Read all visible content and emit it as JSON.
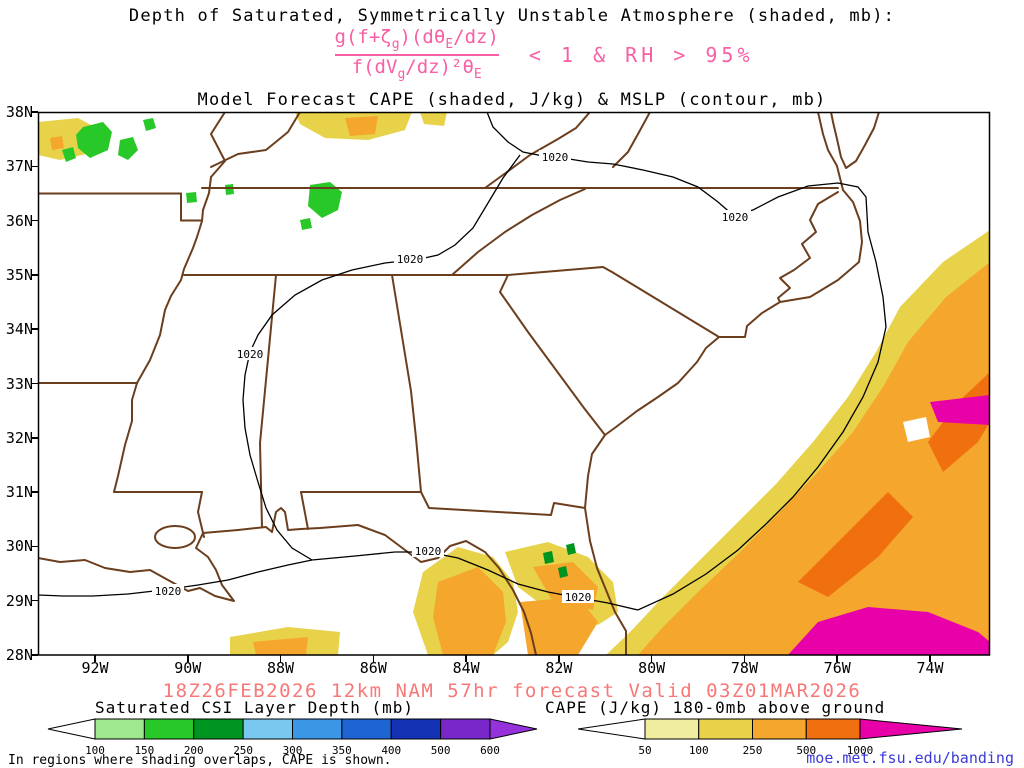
{
  "titles": {
    "line1": "Depth of Saturated, Symmetrically Unstable Atmosphere (shaded, mb):",
    "line2": "Model Forecast CAPE (shaded, J/kg) & MSLP (contour, mb)"
  },
  "formula": {
    "numerator": {
      "p1": "g(f+ζ",
      "s1": "g",
      "p2": ")(dθ",
      "s2": "E",
      "p3": "/dz)"
    },
    "denominator": {
      "p1": "f(dV",
      "s1": "g",
      "p2": "/dz)²θ",
      "s2": "E"
    },
    "condition": "< 1 & RH > 95%"
  },
  "map": {
    "lat_labels": [
      "38N",
      "37N",
      "36N",
      "35N",
      "34N",
      "33N",
      "32N",
      "31N",
      "30N",
      "29N",
      "28N"
    ],
    "lon_labels": [
      "92W",
      "90W",
      "88W",
      "86W",
      "84W",
      "82W",
      "80W",
      "78W",
      "76W",
      "74W"
    ],
    "contour_label": "1020"
  },
  "forecast_line": "18Z26FEB2026 12km NAM 57hr forecast Valid 03Z01MAR2026",
  "legends": {
    "csi": {
      "label": "Saturated CSI Layer Depth (mb)",
      "ticks": [
        "100",
        "150",
        "200",
        "250",
        "300",
        "350",
        "400",
        "500",
        "600"
      ],
      "segment_colors": [
        "#a0e890",
        "#28c828",
        "#009420",
        "#78c8f0",
        "#3c96e6",
        "#1e64d2",
        "#1432b4",
        "#7828c8"
      ],
      "under_color": "#ffffff",
      "over_color": "#9632dc"
    },
    "cape": {
      "label": "CAPE (J/kg) 180-0mb above ground",
      "ticks": [
        "50",
        "100",
        "250",
        "500",
        "1000"
      ],
      "segment_colors": [
        "#f0eca0",
        "#e8d24a",
        "#f5a62d",
        "#f07010"
      ],
      "under_color": "#ffffff",
      "over_color": "#e800a8"
    }
  },
  "footer": {
    "note": "In regions where shading overlaps, CAPE is shown.",
    "link": "moe.met.fsu.edu/banding"
  },
  "colors": {
    "formula_pink": "#f85fa5",
    "forecast_pink": "#f87878",
    "state_border": "#6b3e1e",
    "link_blue": "#3b3bd6"
  }
}
